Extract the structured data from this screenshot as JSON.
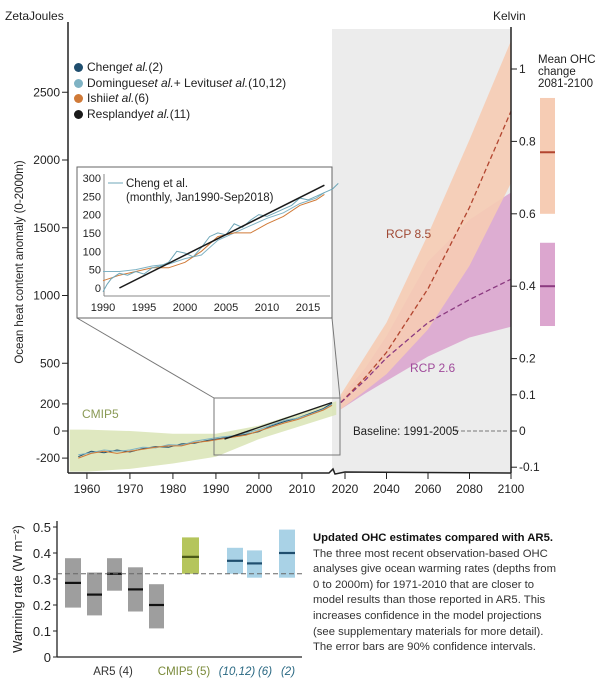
{
  "colors": {
    "cheng": "#1f4e6e",
    "domingues": "#7fb3c4",
    "ishii": "#d07a38",
    "resplandy": "#1a1a1a",
    "cmip5": "#d9e4b5",
    "rcp85_band": "#f6ccb4",
    "rcp85_line": "#b2452f",
    "rcp26_band": "#dca6cf",
    "rcp26_line": "#8b3a80",
    "projection_bg": "#ececec",
    "ar5_bar": "#9e9e9e",
    "cmip5_bar": "#b5c55c",
    "obs_bar": "#a9d2e6",
    "obs_mean": "#1f4e6e"
  },
  "legend": [
    {
      "name": "Cheng ",
      "etal": "et al.",
      "ref": " (2)"
    },
    {
      "name": "Domingues ",
      "etal": "et al.",
      "mid": " + Levitus ",
      "etal2": "et al.",
      "ref": " (10,12)"
    },
    {
      "name": "Ishii ",
      "etal": "et al.",
      "ref": " (6)"
    },
    {
      "name": "Resplandy ",
      "etal": "et al.",
      "ref": " (11)"
    }
  ],
  "chart_data": [
    {
      "type": "line",
      "ylabel_left_unit": "ZetaJoules",
      "ylabel_left": "Ocean heat content anomaly (0-2000m)",
      "ylabel_right_unit": "Kelvin",
      "right_panel_title": [
        "Mean OHC",
        "change",
        "2081-2100"
      ],
      "x_ticks": [
        1960,
        1970,
        1980,
        1990,
        2000,
        2010,
        2020,
        2040,
        2060,
        2080,
        2100
      ],
      "y_ticks_left": [
        -200,
        0,
        200,
        500,
        1000,
        1500,
        2000,
        2500
      ],
      "y_ticks_right": [
        -0.1,
        0,
        0.1,
        0.2,
        0.4,
        0.6,
        0.8,
        1
      ],
      "xlim": [
        1956,
        2100
      ],
      "ylim": [
        -300,
        2900
      ],
      "labels": {
        "cmip5": "CMIP5",
        "rcp85": "RCP 8.5",
        "rcp26": "RCP 2.6",
        "baseline": "Baseline: 1991-2005"
      },
      "cmip5_band": {
        "x": [
          1956,
          1960,
          1970,
          1980,
          1990,
          2000,
          2010,
          2018
        ],
        "upper": [
          10,
          10,
          0,
          -20,
          -20,
          40,
          140,
          220
        ],
        "lower": [
          -300,
          -300,
          -280,
          -240,
          -190,
          -60,
          40,
          120
        ]
      },
      "series": [
        {
          "name": "Cheng et al. (2)",
          "x": [
            1958,
            1961,
            1964,
            1967,
            1970,
            1973,
            1976,
            1979,
            1982,
            1985,
            1988,
            1991,
            1994,
            1997,
            2000,
            2003,
            2006,
            2009,
            2012,
            2015,
            2017
          ],
          "values": [
            -190,
            -150,
            -160,
            -140,
            -155,
            -130,
            -115,
            -120,
            -95,
            -90,
            -70,
            -55,
            -40,
            -25,
            -5,
            40,
            70,
            95,
            130,
            165,
            205
          ]
        },
        {
          "name": "Domingues et al. + Levitus et al. (10,12)",
          "x": [
            1958,
            1961,
            1964,
            1967,
            1970,
            1973,
            1976,
            1979,
            1982,
            1985,
            1988,
            1991,
            1994,
            1997,
            2000,
            2003,
            2006,
            2009,
            2012,
            2015,
            2017
          ],
          "values": [
            -175,
            -160,
            -140,
            -150,
            -140,
            -120,
            -125,
            -100,
            -105,
            -75,
            -60,
            -45,
            -35,
            -15,
            10,
            45,
            80,
            95,
            125,
            160,
            195
          ]
        },
        {
          "name": "Ishii et al. (6)",
          "x": [
            1958,
            1961,
            1964,
            1967,
            1970,
            1973,
            1976,
            1979,
            1982,
            1985,
            1988,
            1991,
            1994,
            1997,
            2000,
            2003,
            2006,
            2009,
            2012,
            2015,
            2017
          ],
          "values": [
            -200,
            -165,
            -150,
            -165,
            -150,
            -135,
            -120,
            -110,
            -110,
            -85,
            -75,
            -60,
            -45,
            -30,
            0,
            30,
            60,
            85,
            120,
            155,
            190
          ]
        },
        {
          "name": "Resplandy et al. (11)",
          "x": [
            1992,
            2017
          ],
          "values": [
            -60,
            210
          ]
        }
      ],
      "projections": [
        {
          "name": "RCP 8.5",
          "x": [
            2018,
            2030,
            2040,
            2060,
            2080,
            2100
          ],
          "mean": [
            210,
            400,
            580,
            1050,
            1650,
            2360
          ],
          "upper": [
            270,
            560,
            800,
            1450,
            2150,
            2880
          ],
          "lower": [
            160,
            300,
            420,
            750,
            1220,
            1830
          ]
        },
        {
          "name": "RCP 2.6",
          "x": [
            2018,
            2030,
            2040,
            2060,
            2080,
            2100
          ],
          "mean": [
            210,
            380,
            540,
            800,
            970,
            1120
          ],
          "upper": [
            250,
            470,
            700,
            1250,
            1560,
            1760
          ],
          "lower": [
            160,
            280,
            370,
            550,
            690,
            770
          ]
        }
      ],
      "baseline_period": [
        1991,
        2005
      ],
      "mean_ohc_change_2081_2100_kelvin": [
        {
          "name": "RCP 8.5",
          "mean": 0.77,
          "low": 0.6,
          "high": 0.92
        },
        {
          "name": "RCP 2.6",
          "mean": 0.4,
          "low": 0.29,
          "high": 0.52
        }
      ]
    },
    {
      "type": "line",
      "inset": true,
      "label": [
        "Cheng et al.",
        "(monthly, Jan1990-Sep2018)"
      ],
      "x_ticks": [
        1990,
        1995,
        2000,
        2005,
        2010,
        2015
      ],
      "y_ticks": [
        0,
        50,
        100,
        150,
        200,
        250,
        300
      ],
      "xlim": [
        1990,
        2018.7
      ],
      "ylim": [
        -10,
        300
      ],
      "series": [
        {
          "name": "Cheng et al.",
          "x": [
            1990,
            1990.5,
            1991,
            1992,
            1993,
            1994,
            1995,
            1996,
            1997,
            1998,
            1999,
            2000,
            2001,
            2002,
            2003,
            2004,
            2005,
            2006,
            2007,
            2008,
            2009,
            2010,
            2011,
            2012,
            2013,
            2014,
            2015,
            2016,
            2017,
            2018,
            2018.7
          ],
          "values": [
            -10,
            10,
            25,
            40,
            35,
            45,
            38,
            55,
            60,
            70,
            100,
            95,
            85,
            110,
            140,
            150,
            145,
            175,
            165,
            185,
            200,
            195,
            205,
            215,
            225,
            245,
            240,
            250,
            260,
            270,
            285
          ]
        },
        {
          "name": "Domingues et al. + Levitus et al.",
          "x": [
            1990,
            1992,
            1994,
            1996,
            1998,
            2000,
            2002,
            2004,
            2006,
            2008,
            2010,
            2012,
            2014,
            2016,
            2017
          ],
          "values": [
            45,
            45,
            50,
            60,
            65,
            80,
            90,
            130,
            150,
            170,
            190,
            205,
            230,
            245,
            260
          ]
        },
        {
          "name": "Ishii et al.",
          "x": [
            1990,
            1992,
            1994,
            1996,
            1998,
            2000,
            2002,
            2004,
            2006,
            2008,
            2010,
            2012,
            2014,
            2016,
            2017
          ],
          "values": [
            20,
            35,
            45,
            55,
            55,
            70,
            100,
            140,
            150,
            150,
            175,
            195,
            225,
            240,
            255
          ]
        },
        {
          "name": "Resplandy et al.",
          "x": [
            1992,
            2017
          ],
          "values": [
            0,
            280
          ]
        }
      ]
    },
    {
      "type": "bar",
      "ylabel": "Warming rate (W m⁻²)",
      "ylim": [
        0,
        0.5
      ],
      "y_ticks": [
        "0",
        "0.1",
        "0.2",
        "0.3",
        "0.4",
        "0.5"
      ],
      "reference_line": 0.32,
      "groups": [
        {
          "label": "AR5 (4)",
          "color_key": "ar5_bar",
          "bars": [
            {
              "low": 0.19,
              "high": 0.38,
              "mean": 0.285
            },
            {
              "low": 0.16,
              "high": 0.325,
              "mean": 0.24
            },
            {
              "low": 0.255,
              "high": 0.38,
              "mean": 0.32
            },
            {
              "low": 0.175,
              "high": 0.345,
              "mean": 0.26
            },
            {
              "low": 0.11,
              "high": 0.28,
              "mean": 0.2
            }
          ]
        },
        {
          "label": "CMIP5 (5)",
          "color_key": "cmip5_bar",
          "bars": [
            {
              "low": 0.32,
              "high": 0.46,
              "mean": 0.385
            }
          ]
        },
        {
          "label": "(10,12)",
          "color_key": "obs_bar",
          "bars": [
            {
              "low": 0.32,
              "high": 0.42,
              "mean": 0.37
            }
          ]
        },
        {
          "label": "(6)",
          "color_key": "obs_bar",
          "bars": [
            {
              "low": 0.305,
              "high": 0.41,
              "mean": 0.36
            }
          ]
        },
        {
          "label": "(2)",
          "color_key": "obs_bar",
          "bars": [
            {
              "low": 0.305,
              "high": 0.49,
              "mean": 0.4
            }
          ]
        }
      ]
    }
  ],
  "caption": {
    "title": "Updated OHC estimates compared with AR5.",
    "lines": [
      "The three most recent observation-based OHC",
      "analyses give ocean warming rates (depths from",
      "0 to 2000m) for 1971-2010 that are closer to",
      "model results than those reported in AR5. This",
      "increases confidence in the model projections",
      "(see  supplementary materials for more detail).",
      "The error bars are 90% confidence intervals."
    ]
  }
}
